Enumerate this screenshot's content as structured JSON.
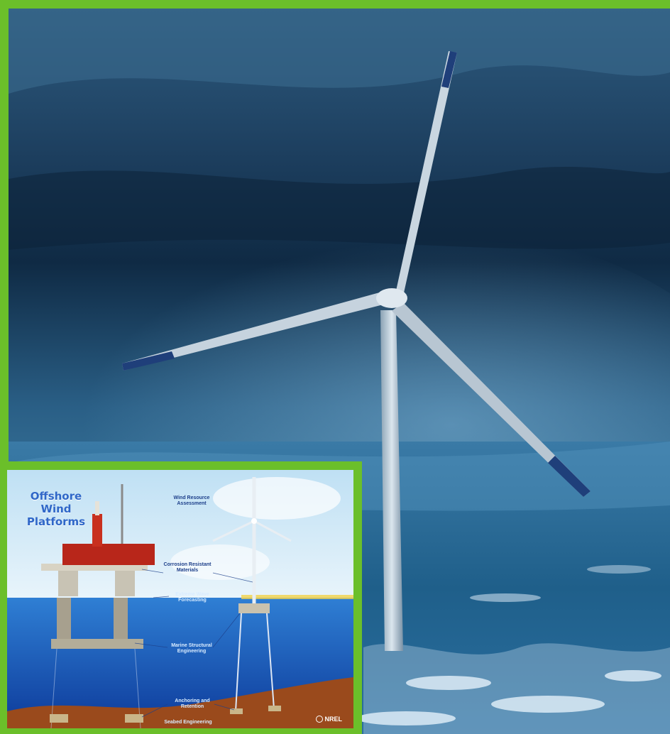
{
  "colors": {
    "frame": "#6bbf2a",
    "sky_dark": "#0f2a44",
    "sky_mid": "#2a5f86",
    "sea": "#1f5f8a",
    "inset_title": "#2f67c8"
  },
  "inset": {
    "title_lines": [
      "Offshore",
      "Wind",
      "Platforms"
    ],
    "labels": {
      "wind_resource": "Wind Resource Assessment",
      "corrosion": "Corrosion Resistant Materials",
      "extreme_wave": "Extreme Wave Forecasting",
      "marine_structural": "Marine Structural Engineering",
      "anchoring": "Anchoring and Retention",
      "seabed": "Seabed Engineering"
    },
    "logo_text": "NREL"
  }
}
